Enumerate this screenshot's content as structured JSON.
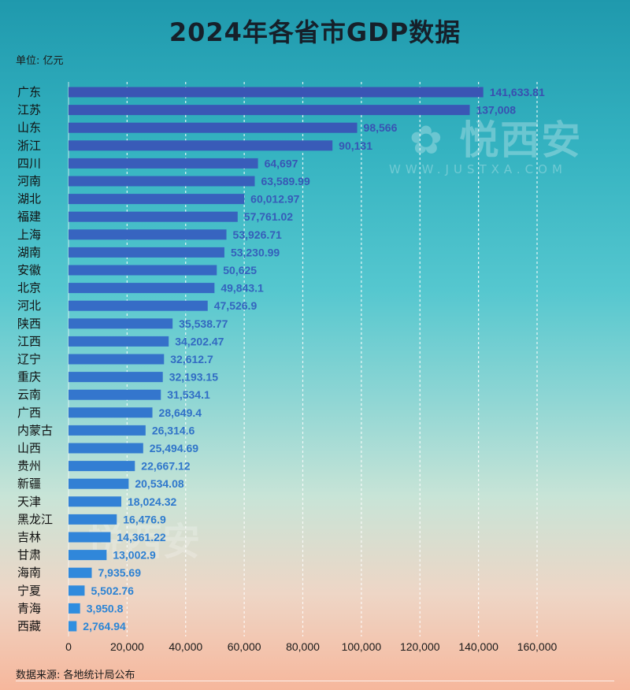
{
  "title": "2024年各省市GDP数据",
  "unit_label": "单位: 亿元",
  "source_label": "数据来源: 各地统计局公布",
  "watermark": {
    "brand": "悦西安",
    "url": "WWW.JUSTXA.COM"
  },
  "colors": {
    "bar_top": "#3a55b4",
    "bar_bottom": "#2f8fe0",
    "label_top": "#3a4fb0",
    "label_bottom": "#2a86d6"
  },
  "chart_data": {
    "type": "bar",
    "orientation": "horizontal",
    "title": "2024年各省市GDP数据",
    "xlabel": "",
    "ylabel": "",
    "xlim": [
      0,
      160000
    ],
    "xticks": [
      0,
      20000,
      40000,
      60000,
      80000,
      100000,
      120000,
      140000,
      160000
    ],
    "xtick_labels": [
      "0",
      "20,000",
      "40,000",
      "60,000",
      "80,000",
      "100,000",
      "120,000",
      "140,000",
      "160,000"
    ],
    "grid": "vertical dashed",
    "categories": [
      "广东",
      "江苏",
      "山东",
      "浙江",
      "四川",
      "河南",
      "湖北",
      "福建",
      "上海",
      "湖南",
      "安徽",
      "北京",
      "河北",
      "陕西",
      "江西",
      "辽宁",
      "重庆",
      "云南",
      "广西",
      "内蒙古",
      "山西",
      "贵州",
      "新疆",
      "天津",
      "黑龙江",
      "吉林",
      "甘肃",
      "海南",
      "宁夏",
      "青海",
      "西藏"
    ],
    "values": [
      141633.81,
      137008,
      98566,
      90131,
      64697,
      63589.99,
      60012.97,
      57761.02,
      53926.71,
      53230.99,
      50625,
      49843.1,
      47526.9,
      35538.77,
      34202.47,
      32612.7,
      32193.15,
      31534.1,
      28649.4,
      26314.6,
      25494.69,
      22667.12,
      20534.08,
      18024.32,
      16476.9,
      14361.22,
      13002.9,
      7935.69,
      5502.76,
      3950.8,
      2764.94
    ],
    "value_labels": [
      "141,633.81",
      "137,008",
      "98,566",
      "90,131",
      "64,697",
      "63,589.99",
      "60,012.97",
      "57,761.02",
      "53,926.71",
      "53,230.99",
      "50,625",
      "49,843.1",
      "47,526.9",
      "35,538.77",
      "34,202.47",
      "32,612.7",
      "32,193.15",
      "31,534.1",
      "28,649.4",
      "26,314.6",
      "25,494.69",
      "22,667.12",
      "20,534.08",
      "18,024.32",
      "16,476.9",
      "14,361.22",
      "13,002.9",
      "7,935.69",
      "5,502.76",
      "3,950.8",
      "2,764.94"
    ]
  }
}
